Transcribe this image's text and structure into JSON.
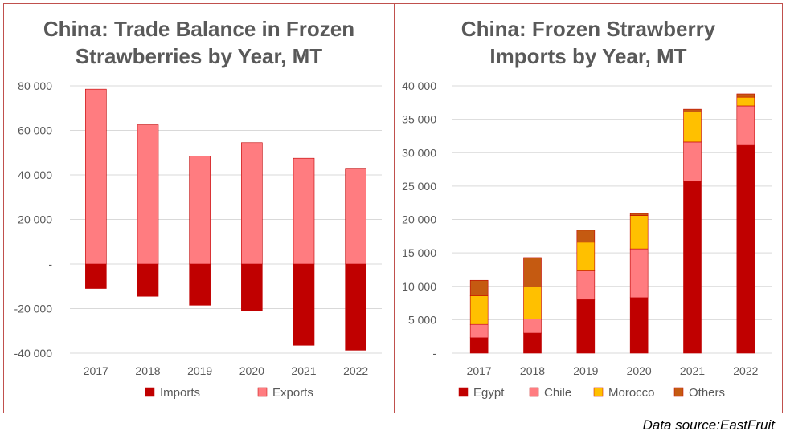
{
  "source_text": "Data source:EastFruit",
  "colors": {
    "imports": "#c00000",
    "exports": "#ff7c80",
    "egypt": "#c00000",
    "chile": "#ff7c80",
    "morocco": "#ffc000",
    "others": "#c55a11"
  },
  "chart_data": [
    {
      "type": "bar",
      "stacked": true,
      "title_lines": [
        "China: Trade Balance in Frozen",
        "Strawberries by Year, MT"
      ],
      "categories": [
        "2017",
        "2018",
        "2019",
        "2020",
        "2021",
        "2022"
      ],
      "series": [
        {
          "name": "Imports",
          "values": [
            -11000,
            -14500,
            -18500,
            -20800,
            -36500,
            -38700
          ]
        },
        {
          "name": "Exports",
          "values": [
            78500,
            62500,
            48500,
            54500,
            47500,
            43000
          ]
        }
      ],
      "ylim": [
        -40000,
        80000
      ],
      "yticks": [
        80000,
        60000,
        40000,
        20000,
        0,
        -20000,
        -40000
      ],
      "ytick_labels": [
        "80 000",
        "60 000",
        "40 000",
        "20 000",
        "-",
        "-20 000",
        "-40 000"
      ],
      "legend_position": "bottom",
      "grid": true
    },
    {
      "type": "bar",
      "stacked": true,
      "title_lines": [
        "China: Frozen Strawberry",
        "Imports by Year, MT"
      ],
      "categories": [
        "2017",
        "2018",
        "2019",
        "2020",
        "2021",
        "2022"
      ],
      "series": [
        {
          "name": "Egypt",
          "values": [
            2300,
            3000,
            8000,
            8300,
            25700,
            31100
          ]
        },
        {
          "name": "Chile",
          "values": [
            2000,
            2100,
            4300,
            7300,
            5900,
            5900
          ]
        },
        {
          "name": "Morocco",
          "values": [
            4300,
            4800,
            4300,
            5000,
            4500,
            1300
          ]
        },
        {
          "name": "Others",
          "values": [
            2300,
            4400,
            1800,
            300,
            400,
            500
          ]
        }
      ],
      "ylim": [
        0,
        40000
      ],
      "yticks": [
        40000,
        35000,
        30000,
        25000,
        20000,
        15000,
        10000,
        5000,
        0
      ],
      "ytick_labels": [
        "40 000",
        "35 000",
        "30 000",
        "25 000",
        "20 000",
        "15 000",
        "10 000",
        "5 000",
        "-"
      ],
      "legend_position": "bottom",
      "grid": true
    }
  ]
}
